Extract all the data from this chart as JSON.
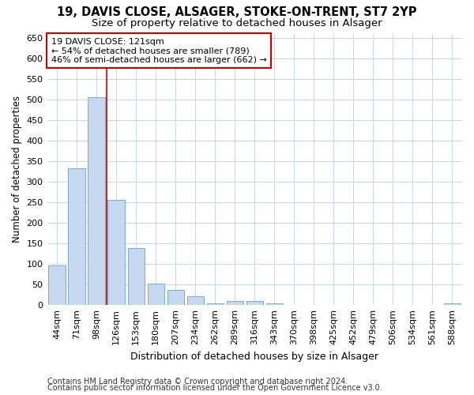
{
  "title_line1": "19, DAVIS CLOSE, ALSAGER, STOKE-ON-TRENT, ST7 2YP",
  "title_line2": "Size of property relative to detached houses in Alsager",
  "xlabel": "Distribution of detached houses by size in Alsager",
  "ylabel": "Number of detached properties",
  "categories": [
    "44sqm",
    "71sqm",
    "98sqm",
    "126sqm",
    "153sqm",
    "180sqm",
    "207sqm",
    "234sqm",
    "262sqm",
    "289sqm",
    "316sqm",
    "343sqm",
    "370sqm",
    "398sqm",
    "425sqm",
    "452sqm",
    "479sqm",
    "506sqm",
    "534sqm",
    "561sqm",
    "588sqm"
  ],
  "values": [
    97,
    333,
    505,
    255,
    138,
    53,
    37,
    21,
    5,
    10,
    10,
    5,
    0,
    0,
    0,
    0,
    0,
    0,
    0,
    0,
    5
  ],
  "bar_color": "#c5d8f0",
  "bar_edge_color": "#7aaad0",
  "grid_color": "#c8d4e8",
  "annotation_line1": "19 DAVIS CLOSE: 121sqm",
  "annotation_line2": "← 54% of detached houses are smaller (789)",
  "annotation_line3": "46% of semi-detached houses are larger (662) →",
  "annotation_box_color": "#ffffff",
  "annotation_box_edge_color": "#cc0000",
  "vline_x": 2.5,
  "vline_color": "#cc0000",
  "ylim": [
    0,
    660
  ],
  "yticks": [
    0,
    50,
    100,
    150,
    200,
    250,
    300,
    350,
    400,
    450,
    500,
    550,
    600,
    650
  ],
  "footer_line1": "Contains HM Land Registry data © Crown copyright and database right 2024.",
  "footer_line2": "Contains public sector information licensed under the Open Government Licence v3.0.",
  "title1_fontsize": 10.5,
  "title2_fontsize": 9.5,
  "xlabel_fontsize": 9,
  "ylabel_fontsize": 8.5,
  "tick_fontsize": 8,
  "annotation_fontsize": 8,
  "footer_fontsize": 7,
  "background_color": "#ffffff"
}
